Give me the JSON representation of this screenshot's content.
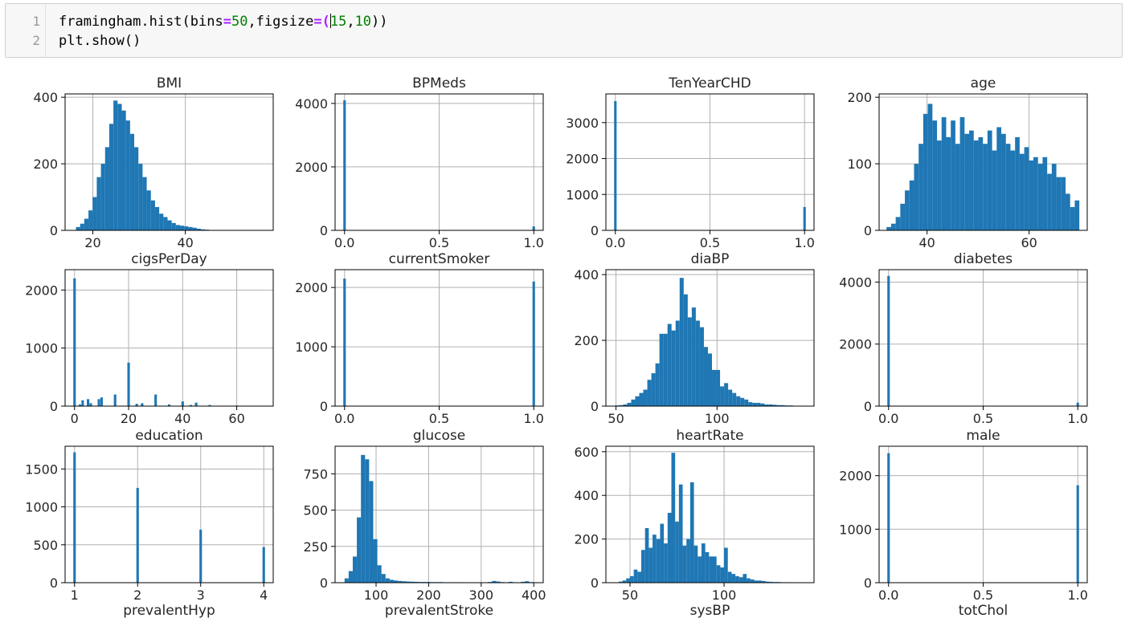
{
  "cell": {
    "line_numbers": [
      "1",
      "2"
    ],
    "line1": {
      "a": "framingham.hist(bins",
      "op1": "=",
      "n1": "50",
      "b": ",figsize",
      "op2": "=",
      "c": "(",
      "n2": "15",
      "d": ",",
      "n3": "10",
      "e": "))"
    },
    "line2": "plt.show()"
  },
  "chart_data": [
    {
      "type": "bar",
      "title": "BMI",
      "xlim": [
        14,
        59
      ],
      "ylim": [
        0,
        410
      ],
      "xticks": [
        20,
        40
      ],
      "yticks": [
        0,
        200,
        400
      ],
      "x": [
        16.8,
        17.7,
        18.6,
        19.5,
        20.4,
        21.3,
        22.2,
        23.1,
        24.0,
        24.9,
        25.8,
        26.7,
        27.6,
        28.5,
        29.4,
        30.3,
        31.2,
        32.1,
        33.0,
        33.9,
        34.8,
        35.7,
        36.6,
        37.5,
        38.4,
        39.3,
        40.2,
        41.1,
        42.0,
        42.9,
        43.8,
        44.7,
        45.6
      ],
      "y": [
        10,
        20,
        35,
        60,
        100,
        160,
        200,
        250,
        320,
        390,
        380,
        360,
        330,
        290,
        250,
        200,
        160,
        120,
        90,
        70,
        50,
        40,
        30,
        22,
        16,
        14,
        12,
        10,
        8,
        5,
        3,
        2,
        1
      ]
    },
    {
      "type": "bar",
      "title": "BPMeds",
      "xlim": [
        -0.05,
        1.05
      ],
      "ylim": [
        0,
        4300
      ],
      "xticks": [
        0.0,
        0.5,
        1.0
      ],
      "yticks": [
        0,
        2000,
        4000
      ],
      "x": [
        0.0,
        1.0
      ],
      "y": [
        4100,
        125
      ]
    },
    {
      "type": "bar",
      "title": "TenYearCHD",
      "xlim": [
        -0.05,
        1.05
      ],
      "ylim": [
        0,
        3800
      ],
      "xticks": [
        0.0,
        0.5,
        1.0
      ],
      "yticks": [
        0,
        1000,
        2000,
        3000
      ],
      "x": [
        0.0,
        1.0
      ],
      "y": [
        3600,
        650
      ]
    },
    {
      "type": "bar",
      "title": "age",
      "xlim": [
        30.6,
        71.4
      ],
      "ylim": [
        0,
        205
      ],
      "xticks": [
        40,
        60
      ],
      "yticks": [
        0,
        100,
        200
      ],
      "x": [
        32.5,
        33.4,
        34.3,
        35.2,
        36.1,
        37.0,
        37.9,
        38.8,
        39.7,
        40.6,
        41.5,
        42.4,
        43.3,
        44.2,
        45.1,
        46.0,
        46.9,
        47.8,
        48.7,
        49.6,
        50.5,
        51.4,
        52.3,
        53.2,
        54.1,
        55.0,
        55.9,
        56.8,
        57.7,
        58.6,
        59.5,
        60.4,
        61.3,
        62.2,
        63.1,
        64.0,
        64.9,
        65.8,
        66.7,
        67.6,
        68.5,
        69.4
      ],
      "y": [
        5,
        10,
        20,
        40,
        60,
        75,
        100,
        130,
        175,
        190,
        165,
        135,
        170,
        140,
        165,
        130,
        170,
        145,
        150,
        135,
        140,
        130,
        150,
        120,
        155,
        145,
        130,
        120,
        140,
        115,
        125,
        105,
        110,
        100,
        110,
        85,
        100,
        80,
        80,
        55,
        35,
        45
      ]
    },
    {
      "type": "bar",
      "title": "cigsPerDay",
      "xlim": [
        -3.5,
        73.5
      ],
      "ylim": [
        0,
        2350
      ],
      "xticks": [
        0,
        20,
        40,
        60
      ],
      "yticks": [
        0,
        1000,
        2000
      ],
      "x": [
        0,
        2,
        3,
        5,
        6,
        9,
        10,
        15,
        20,
        23,
        25,
        30,
        35,
        40,
        43,
        45,
        50,
        60,
        70
      ],
      "y": [
        2200,
        30,
        100,
        120,
        50,
        120,
        150,
        200,
        750,
        40,
        50,
        200,
        30,
        80,
        20,
        60,
        20,
        10,
        5
      ]
    },
    {
      "type": "bar",
      "title": "currentSmoker",
      "xlim": [
        -0.05,
        1.05
      ],
      "ylim": [
        0,
        2300
      ],
      "xticks": [
        0.0,
        0.5,
        1.0
      ],
      "yticks": [
        0,
        1000,
        2000
      ],
      "x": [
        0.0,
        1.0
      ],
      "y": [
        2150,
        2100
      ]
    },
    {
      "type": "bar",
      "title": "diaBP",
      "xlim": [
        45,
        148
      ],
      "ylim": [
        0,
        415
      ],
      "xticks": [
        50,
        100
      ],
      "yticks": [
        0,
        200,
        400
      ],
      "x": [
        50.5,
        52.5,
        54.5,
        56.5,
        58.5,
        60.5,
        62.5,
        64.5,
        66.5,
        68.5,
        70.5,
        72.5,
        74.5,
        76.5,
        78.5,
        80.5,
        82.5,
        84.5,
        86.5,
        88.5,
        90.5,
        92.5,
        94.5,
        96.5,
        98.5,
        100.5,
        102.5,
        104.5,
        106.5,
        108.5,
        110.5,
        112.5,
        114.5,
        116.5,
        118.5,
        120.5,
        122.5,
        124.5,
        126.5,
        128.5,
        130.5,
        132.5,
        134.5,
        136.5,
        138.5,
        140.5
      ],
      "y": [
        2,
        3,
        5,
        10,
        20,
        30,
        40,
        50,
        80,
        100,
        130,
        220,
        220,
        250,
        230,
        260,
        390,
        340,
        270,
        300,
        260,
        240,
        180,
        160,
        110,
        110,
        60,
        70,
        50,
        40,
        30,
        25,
        20,
        12,
        10,
        10,
        8,
        5,
        5,
        4,
        3,
        3,
        2,
        2,
        1,
        1
      ]
    },
    {
      "type": "bar",
      "title": "diabetes",
      "xlim": [
        -0.05,
        1.05
      ],
      "ylim": [
        0,
        4400
      ],
      "xticks": [
        0.0,
        0.5,
        1.0
      ],
      "yticks": [
        0,
        2000,
        4000
      ],
      "x": [
        0.0,
        1.0
      ],
      "y": [
        4200,
        110
      ]
    },
    {
      "type": "bar",
      "title": "education",
      "xlim": [
        0.85,
        4.15
      ],
      "ylim": [
        0,
        1800
      ],
      "xticks": [
        1,
        2,
        3,
        4
      ],
      "yticks": [
        0,
        500,
        1000,
        1500
      ],
      "x": [
        1.0,
        2.0,
        3.0,
        4.0
      ],
      "y": [
        1720,
        1250,
        700,
        470
      ]
    },
    {
      "type": "bar",
      "title": "glucose",
      "xlim": [
        22,
        418
      ],
      "ylim": [
        0,
        940
      ],
      "xticks": [
        100,
        200,
        300,
        400
      ],
      "yticks": [
        0,
        250,
        500,
        750
      ],
      "x": [
        43.9,
        51.7,
        59.5,
        67.3,
        75.1,
        82.9,
        90.7,
        98.5,
        106.3,
        114.1,
        121.9,
        129.7,
        137.5,
        145.3,
        153.1,
        160.9,
        168.7,
        176.5,
        184.3,
        192.1,
        199.9,
        207.7,
        215.5,
        223.3,
        231.1,
        238.9,
        246.7,
        254.5,
        262.3,
        270.1,
        277.9,
        285.7,
        293.5,
        301.3,
        309.1,
        316.9,
        324.7,
        332.5,
        340.3,
        348.1,
        355.9,
        363.7,
        371.5,
        379.3,
        387.1,
        394.9
      ],
      "y": [
        30,
        80,
        180,
        450,
        880,
        850,
        700,
        300,
        120,
        60,
        30,
        20,
        15,
        12,
        10,
        8,
        7,
        6,
        5,
        5,
        5,
        4,
        4,
        4,
        3,
        3,
        3,
        3,
        3,
        2,
        2,
        2,
        2,
        2,
        2,
        5,
        12,
        8,
        4,
        2,
        6,
        3,
        2,
        6,
        10,
        4
      ]
    },
    {
      "type": "bar",
      "title": "heartRate",
      "xlim": [
        37.2,
        147.8
      ],
      "ylim": [
        0,
        625
      ],
      "xticks": [
        50,
        100
      ],
      "yticks": [
        0,
        200,
        400,
        600
      ],
      "x": [
        45,
        47,
        49,
        51,
        53,
        55,
        57,
        59,
        61,
        63,
        65,
        67,
        69,
        71,
        73,
        75,
        77,
        79,
        81,
        83,
        85,
        87,
        89,
        91,
        93,
        95,
        97,
        99,
        101,
        103,
        105,
        107,
        109,
        111,
        113,
        115,
        117,
        119,
        121,
        123,
        125,
        127,
        129,
        131,
        133,
        135,
        137,
        139,
        141
      ],
      "y": [
        5,
        10,
        20,
        30,
        60,
        50,
        150,
        250,
        160,
        220,
        200,
        270,
        180,
        320,
        595,
        280,
        450,
        170,
        200,
        460,
        170,
        120,
        180,
        140,
        120,
        120,
        80,
        70,
        160,
        50,
        40,
        30,
        25,
        40,
        20,
        15,
        10,
        10,
        8,
        5,
        4,
        3,
        3,
        2,
        2,
        2,
        1,
        1,
        1
      ]
    },
    {
      "type": "bar",
      "title": "male",
      "xlim": [
        -0.05,
        1.05
      ],
      "ylim": [
        0,
        2550
      ],
      "xticks": [
        0.0,
        0.5,
        1.0
      ],
      "yticks": [
        0,
        1000,
        2000
      ],
      "x": [
        0.0,
        1.0
      ],
      "y": [
        2420,
        1820
      ]
    },
    {
      "type": "label",
      "title": "prevalentHyp"
    },
    {
      "type": "label",
      "title": "prevalentStroke"
    },
    {
      "type": "label",
      "title": "sysBP"
    },
    {
      "type": "label",
      "title": "totChol"
    }
  ]
}
